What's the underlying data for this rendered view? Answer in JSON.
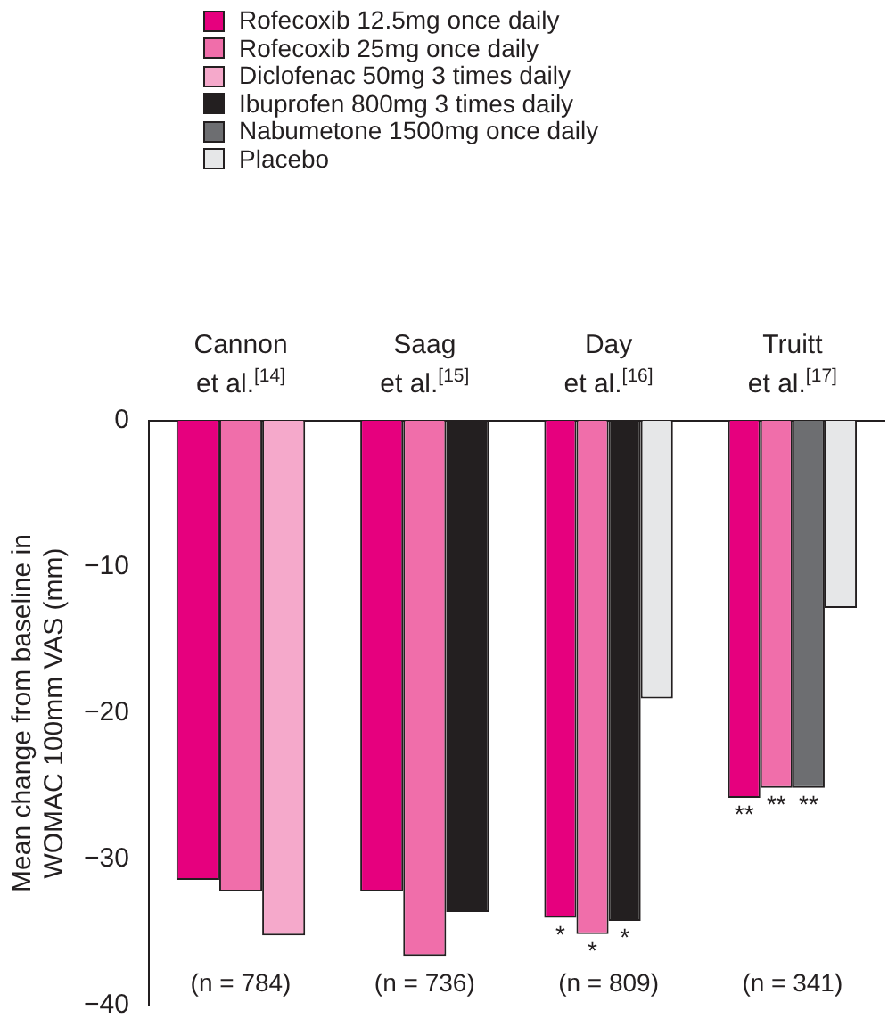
{
  "chart_data": {
    "type": "bar",
    "categories": [
      "Cannon\net al.$^{[14]}$",
      "Saag\net al.$^{[15]}$",
      "Day\net al.$^{[16]}$",
      "Truitt\net al.$^{[17]}$"
    ],
    "ylabel": "Mean change from baseline in\nWOMAC 100mm VAS (mm)",
    "ylim": [
      -40,
      0
    ],
    "yticks": [
      0,
      {
        "value": -10,
        "label": "−10"
      },
      {
        "value": -20,
        "label": "−20"
      },
      {
        "value": -30,
        "label": "−30"
      },
      {
        "value": -40,
        "label": "−40"
      }
    ],
    "grid": false,
    "legend": "top",
    "series": [
      {
        "name": "Rofecoxib 12.5mg once daily",
        "color": "#e6007e",
        "values": [
          -31.4,
          -32.2,
          -34.0,
          -25.8
        ],
        "value_labels": [
          null,
          null,
          "*",
          "**"
        ]
      },
      {
        "name": "Rofecoxib 25mg once daily",
        "color": "#f06eaa",
        "values": [
          -32.2,
          -36.6,
          -35.1,
          -25.1
        ],
        "value_labels": [
          null,
          null,
          "*",
          "**"
        ]
      },
      {
        "name": "Diclofenac 50mg 3 times daily",
        "color": "#f5a9cb",
        "values": [
          -35.2,
          null,
          null,
          null
        ]
      },
      {
        "name": "Ibuprofen 800mg 3 times daily",
        "color": "#231f20",
        "values": [
          null,
          -33.6,
          -34.2,
          null
        ],
        "value_labels": [
          null,
          null,
          "*",
          null
        ]
      },
      {
        "name": "Nabumetone 1500mg once daily",
        "color": "#6d6e71",
        "values": [
          null,
          null,
          null,
          -25.1
        ],
        "value_labels": [
          null,
          null,
          null,
          "**"
        ]
      },
      {
        "name": "Placebo",
        "color": "#e6e7e8",
        "values": [
          null,
          null,
          -19.0,
          -12.8
        ]
      }
    ],
    "annotations": [
      "(n = 784)",
      "(n = 736)",
      "(n = 809)",
      "(n = 341)"
    ]
  }
}
